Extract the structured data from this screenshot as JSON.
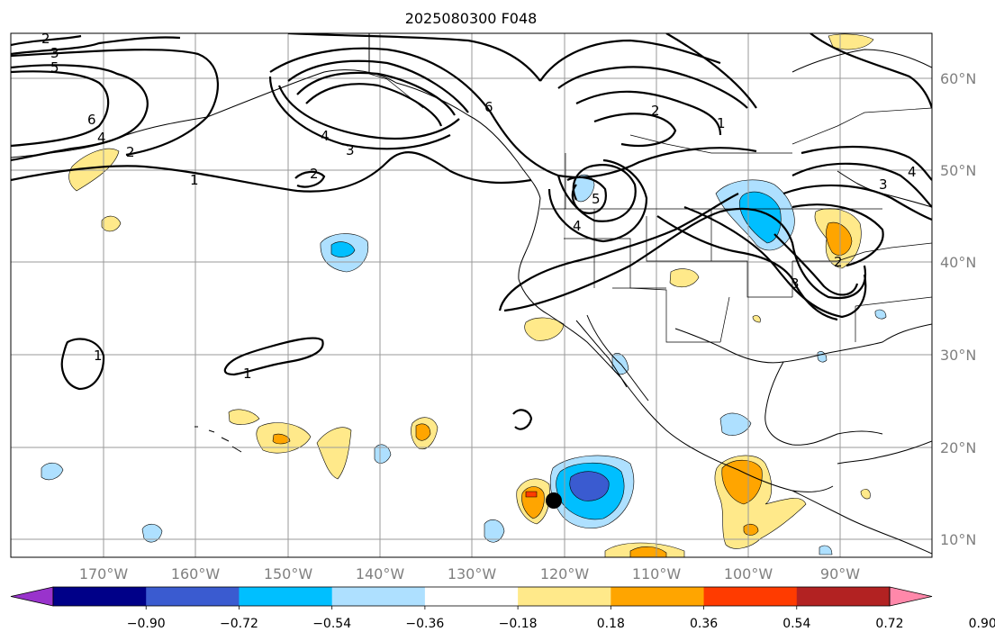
{
  "title": "2025080300 F048",
  "longitude_labels": [
    "170°W",
    "160°W",
    "150°W",
    "140°W",
    "130°W",
    "120°W",
    "110°W",
    "100°W",
    "90°W"
  ],
  "latitude_labels": [
    "60°N",
    "50°N",
    "40°N",
    "30°N",
    "20°N",
    "10°N"
  ],
  "colorbar": {
    "colors": [
      "#9933cc",
      "#000088",
      "#3a5bd0",
      "#00bfff",
      "#aee0ff",
      "#ffffff",
      "#ffe98a",
      "#ffa500",
      "#ff3b00",
      "#b22222",
      "#ff88aa"
    ],
    "tick_labels": [
      "−0.90",
      "−0.72",
      "−0.54",
      "−0.36",
      "−0.18",
      "0.18",
      "0.36",
      "0.54",
      "0.72",
      "0.90"
    ]
  },
  "contour_labels": [
    "2",
    "3",
    "5",
    "6",
    "4",
    "2",
    "1",
    "2",
    "6",
    "4",
    "3",
    "2",
    "1",
    "5",
    "4",
    "3",
    "4",
    "3",
    "2",
    "1",
    "1"
  ],
  "colors": {
    "contour": "#000000",
    "grid": "#9a9a9a",
    "axis_label": "#808080",
    "marker": "#000000"
  }
}
